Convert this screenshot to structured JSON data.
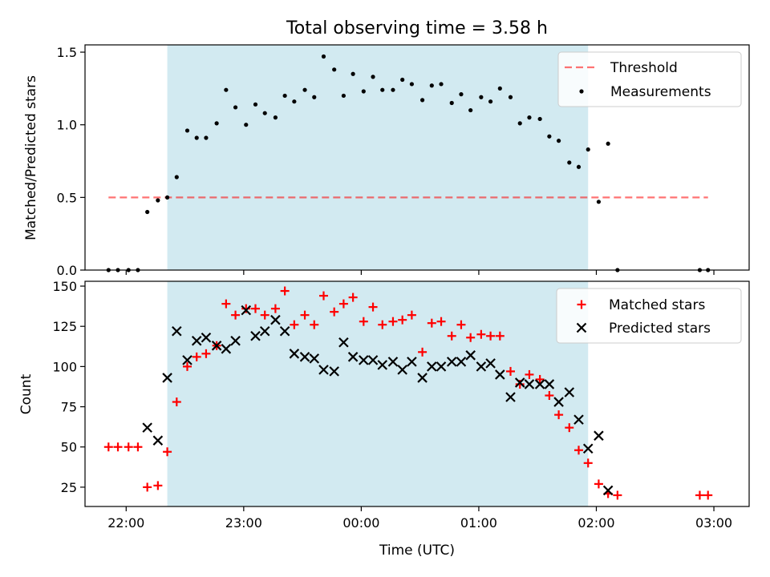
{
  "title": "Total observing time = 3.58 h",
  "colors": {
    "shade": "#add8e6",
    "threshold": "#ff0000",
    "matched": "#ff0000",
    "predicted": "#000000",
    "measurement": "#000000"
  },
  "chart_data": [
    {
      "type": "scatter",
      "title": "Total observing time = 3.58 h",
      "ylabel": "Matched/Predicted stars",
      "xlabel": "",
      "xlim": [
        21.65,
        27.3
      ],
      "ylim": [
        0,
        1.55
      ],
      "yticks": [
        0.0,
        0.5,
        1.0,
        1.5
      ],
      "ytick_labels": [
        "0.0",
        "0.5",
        "1.0",
        "1.5"
      ],
      "shaded_x": [
        22.35,
        25.93
      ],
      "legend_position": "top-right",
      "threshold": {
        "name": "Threshold",
        "x": [
          21.85,
          26.95
        ],
        "y": 0.5
      },
      "series": [
        {
          "name": "Measurements",
          "x": [
            21.85,
            21.93,
            22.02,
            22.1,
            22.18,
            22.27,
            22.35,
            22.43,
            22.52,
            22.6,
            22.68,
            22.77,
            22.85,
            22.93,
            23.02,
            23.1,
            23.18,
            23.27,
            23.35,
            23.43,
            23.52,
            23.6,
            23.68,
            23.77,
            23.85,
            23.93,
            24.02,
            24.1,
            24.18,
            24.27,
            24.35,
            24.43,
            24.52,
            24.6,
            24.68,
            24.77,
            24.85,
            24.93,
            25.02,
            25.1,
            25.18,
            25.27,
            25.35,
            25.43,
            25.52,
            25.6,
            25.68,
            25.77,
            25.85,
            25.93,
            26.02,
            26.1,
            26.18,
            26.88,
            26.95
          ],
          "y": [
            0,
            0,
            0,
            0,
            0.4,
            0.48,
            0.5,
            0.64,
            0.96,
            0.91,
            0.91,
            1.01,
            1.24,
            1.12,
            1.0,
            1.14,
            1.08,
            1.05,
            1.2,
            1.16,
            1.24,
            1.19,
            1.47,
            1.38,
            1.2,
            1.35,
            1.23,
            1.33,
            1.24,
            1.24,
            1.31,
            1.28,
            1.17,
            1.27,
            1.28,
            1.15,
            1.21,
            1.1,
            1.19,
            1.16,
            1.25,
            1.19,
            1.01,
            1.05,
            1.04,
            0.92,
            0.89,
            0.74,
            0.71,
            0.83,
            0.47,
            0.87,
            0,
            0,
            0
          ]
        }
      ]
    },
    {
      "type": "scatter",
      "title": "",
      "xlabel": "Time (UTC)",
      "ylabel": "Count",
      "xlim": [
        21.65,
        27.3
      ],
      "ylim": [
        13,
        153
      ],
      "yticks": [
        25,
        50,
        75,
        100,
        125,
        150
      ],
      "ytick_labels": [
        "25",
        "50",
        "75",
        "100",
        "125",
        "150"
      ],
      "xticks": [
        22,
        23,
        24,
        25,
        26,
        27
      ],
      "xtick_labels": [
        "22:00",
        "23:00",
        "00:00",
        "01:00",
        "02:00",
        "03:00"
      ],
      "shaded_x": [
        22.35,
        25.93
      ],
      "legend_position": "top-right",
      "series": [
        {
          "name": "Matched stars",
          "x": [
            21.85,
            21.93,
            22.02,
            22.1,
            22.18,
            22.27,
            22.35,
            22.43,
            22.52,
            22.6,
            22.68,
            22.77,
            22.85,
            22.93,
            23.02,
            23.1,
            23.18,
            23.27,
            23.35,
            23.43,
            23.52,
            23.6,
            23.68,
            23.77,
            23.85,
            23.93,
            24.02,
            24.1,
            24.18,
            24.27,
            24.35,
            24.43,
            24.52,
            24.6,
            24.68,
            24.77,
            24.85,
            24.93,
            25.02,
            25.1,
            25.18,
            25.27,
            25.35,
            25.43,
            25.52,
            25.6,
            25.68,
            25.77,
            25.85,
            25.93,
            26.02,
            26.1,
            26.18,
            26.88,
            26.95
          ],
          "y": [
            50,
            50,
            50,
            50,
            25,
            26,
            47,
            78,
            100,
            106,
            108,
            113,
            139,
            132,
            136,
            136,
            132,
            136,
            147,
            126,
            132,
            126,
            144,
            134,
            139,
            143,
            128,
            137,
            126,
            128,
            129,
            132,
            109,
            127,
            128,
            119,
            126,
            118,
            120,
            119,
            119,
            97,
            89,
            95,
            92,
            82,
            70,
            62,
            48,
            40,
            27,
            21,
            20,
            20,
            20
          ]
        },
        {
          "name": "Predicted stars",
          "x": [
            22.18,
            22.27,
            22.35,
            22.43,
            22.52,
            22.6,
            22.68,
            22.77,
            22.85,
            22.93,
            23.02,
            23.1,
            23.18,
            23.27,
            23.35,
            23.43,
            23.52,
            23.6,
            23.68,
            23.77,
            23.85,
            23.93,
            24.02,
            24.1,
            24.18,
            24.27,
            24.35,
            24.43,
            24.52,
            24.6,
            24.68,
            24.77,
            24.85,
            24.93,
            25.02,
            25.1,
            25.18,
            25.27,
            25.35,
            25.43,
            25.52,
            25.6,
            25.68,
            25.77,
            25.85,
            25.93,
            26.02,
            26.1
          ],
          "y": [
            62,
            54,
            93,
            122,
            104,
            116,
            118,
            113,
            111,
            116,
            135,
            119,
            122,
            129,
            122,
            108,
            106,
            105,
            98,
            97,
            115,
            106,
            104,
            104,
            101,
            103,
            98,
            103,
            93,
            100,
            100,
            103,
            103,
            107,
            100,
            102,
            95,
            81,
            90,
            89,
            89,
            89,
            78,
            84,
            67,
            49,
            57,
            23
          ]
        }
      ]
    }
  ]
}
